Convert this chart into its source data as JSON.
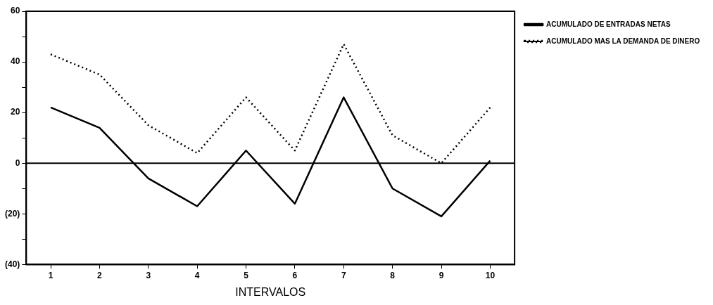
{
  "chart_data": {
    "type": "line",
    "xlabel": "INTERVALOS",
    "categories": [
      "1",
      "2",
      "3",
      "4",
      "5",
      "6",
      "7",
      "8",
      "9",
      "10"
    ],
    "series": [
      {
        "name": "ACUMULADO DE ENTRADAS NETAS",
        "color": "#000000",
        "line_style": "solid",
        "values": [
          22,
          14,
          -6,
          -17,
          5,
          -16,
          26,
          -10,
          -21,
          1
        ]
      },
      {
        "name": "ACUMULADO MAS LA DEMANDA DE DINERO",
        "color": "#000000",
        "line_style": "dotted",
        "values": [
          43,
          35,
          15,
          4,
          26,
          5,
          47,
          11,
          0,
          22
        ]
      }
    ],
    "ylim": [
      -40,
      60
    ],
    "yticks": [
      {
        "value": -40,
        "label": "(40)"
      },
      {
        "value": -30,
        "label": null
      },
      {
        "value": -20,
        "label": "(20)"
      },
      {
        "value": -10,
        "label": null
      },
      0,
      {
        "value": 10,
        "label": null
      },
      20,
      {
        "value": 30,
        "label": null
      },
      40,
      {
        "value": 50,
        "label": null
      },
      60
    ],
    "ref_lines": [
      {
        "axis": "y",
        "value": 0,
        "color": "#000000"
      }
    ],
    "grid": false,
    "legend": "right",
    "marker": "none"
  }
}
